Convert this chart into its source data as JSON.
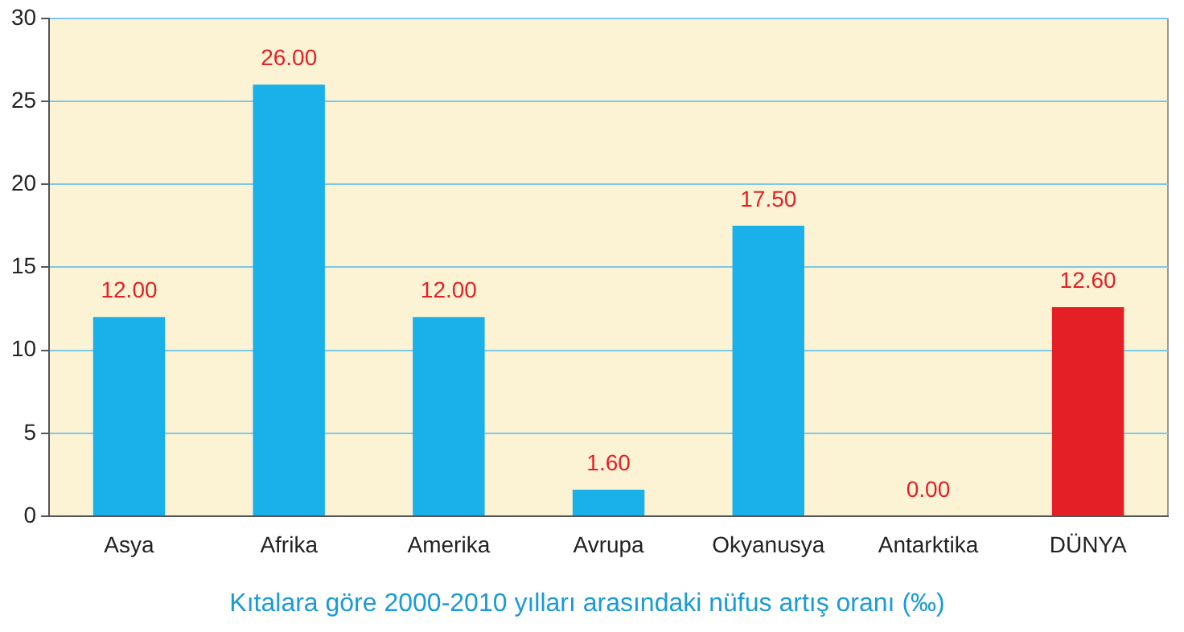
{
  "chart_data": {
    "type": "bar",
    "title": "Kıtalara göre 2000-2010 yılları arasındaki nüfus artış oranı (‰)",
    "categories": [
      "Asya",
      "Afrika",
      "Amerika",
      "Avrupa",
      "Okyanusya",
      "Antarktika",
      "DÜNYA"
    ],
    "values": [
      12,
      26,
      12,
      1.6,
      17.5,
      0,
      12.6
    ],
    "colors": [
      "#1ab0ea",
      "#1ab0ea",
      "#1ab0ea",
      "#1ab0ea",
      "#1ab0ea",
      "#1ab0ea",
      "#e41f26"
    ],
    "value_labels": [
      "12.00",
      "26.00",
      "12.00",
      "1.60",
      "17.50",
      "0.00",
      "12.60"
    ],
    "ylim": [
      0,
      30
    ],
    "yticks": [
      0,
      5,
      10,
      15,
      20,
      25,
      30
    ],
    "grid": "y",
    "legend": false
  }
}
